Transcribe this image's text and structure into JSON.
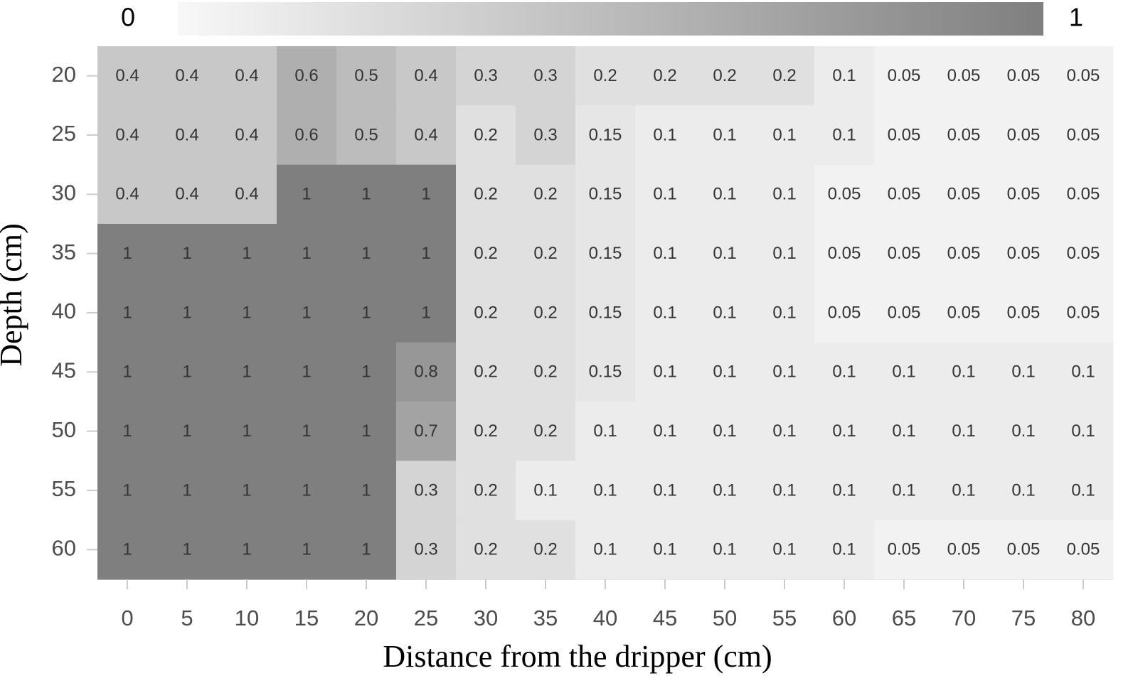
{
  "chart_data": {
    "type": "heatmap",
    "x_label": "Distance from the dripper (cm)",
    "y_label": "Depth (cm)",
    "x": [
      0,
      5,
      10,
      15,
      20,
      25,
      30,
      35,
      40,
      45,
      50,
      55,
      60,
      65,
      70,
      75,
      80
    ],
    "y": [
      20,
      25,
      30,
      35,
      40,
      45,
      50,
      55,
      60
    ],
    "z": [
      [
        0.4,
        0.4,
        0.4,
        0.6,
        0.5,
        0.4,
        0.3,
        0.3,
        0.2,
        0.2,
        0.2,
        0.2,
        0.1,
        0.05,
        0.05,
        0.05,
        0.05
      ],
      [
        0.4,
        0.4,
        0.4,
        0.6,
        0.5,
        0.4,
        0.2,
        0.3,
        0.15,
        0.1,
        0.1,
        0.1,
        0.1,
        0.05,
        0.05,
        0.05,
        0.05
      ],
      [
        0.4,
        0.4,
        0.4,
        1,
        1,
        1,
        0.2,
        0.2,
        0.15,
        0.1,
        0.1,
        0.1,
        0.05,
        0.05,
        0.05,
        0.05,
        0.05
      ],
      [
        1,
        1,
        1,
        1,
        1,
        1,
        0.2,
        0.2,
        0.15,
        0.1,
        0.1,
        0.1,
        0.05,
        0.05,
        0.05,
        0.05,
        0.05
      ],
      [
        1,
        1,
        1,
        1,
        1,
        1,
        0.2,
        0.2,
        0.15,
        0.1,
        0.1,
        0.1,
        0.05,
        0.05,
        0.05,
        0.05,
        0.05
      ],
      [
        1,
        1,
        1,
        1,
        1,
        0.8,
        0.2,
        0.2,
        0.15,
        0.1,
        0.1,
        0.1,
        0.1,
        0.1,
        0.1,
        0.1,
        0.1
      ],
      [
        1,
        1,
        1,
        1,
        1,
        0.7,
        0.2,
        0.2,
        0.1,
        0.1,
        0.1,
        0.1,
        0.1,
        0.1,
        0.1,
        0.1,
        0.1
      ],
      [
        1,
        1,
        1,
        1,
        1,
        0.3,
        0.2,
        0.1,
        0.1,
        0.1,
        0.1,
        0.1,
        0.1,
        0.1,
        0.1,
        0.1,
        0.1
      ],
      [
        1,
        1,
        1,
        1,
        1,
        0.3,
        0.2,
        0.2,
        0.1,
        0.1,
        0.1,
        0.1,
        0.1,
        0.05,
        0.05,
        0.05,
        0.05
      ]
    ],
    "zlim": [
      0,
      1
    ],
    "colormap": [
      "#f8f8f8",
      "#7f7f7f"
    ]
  }
}
